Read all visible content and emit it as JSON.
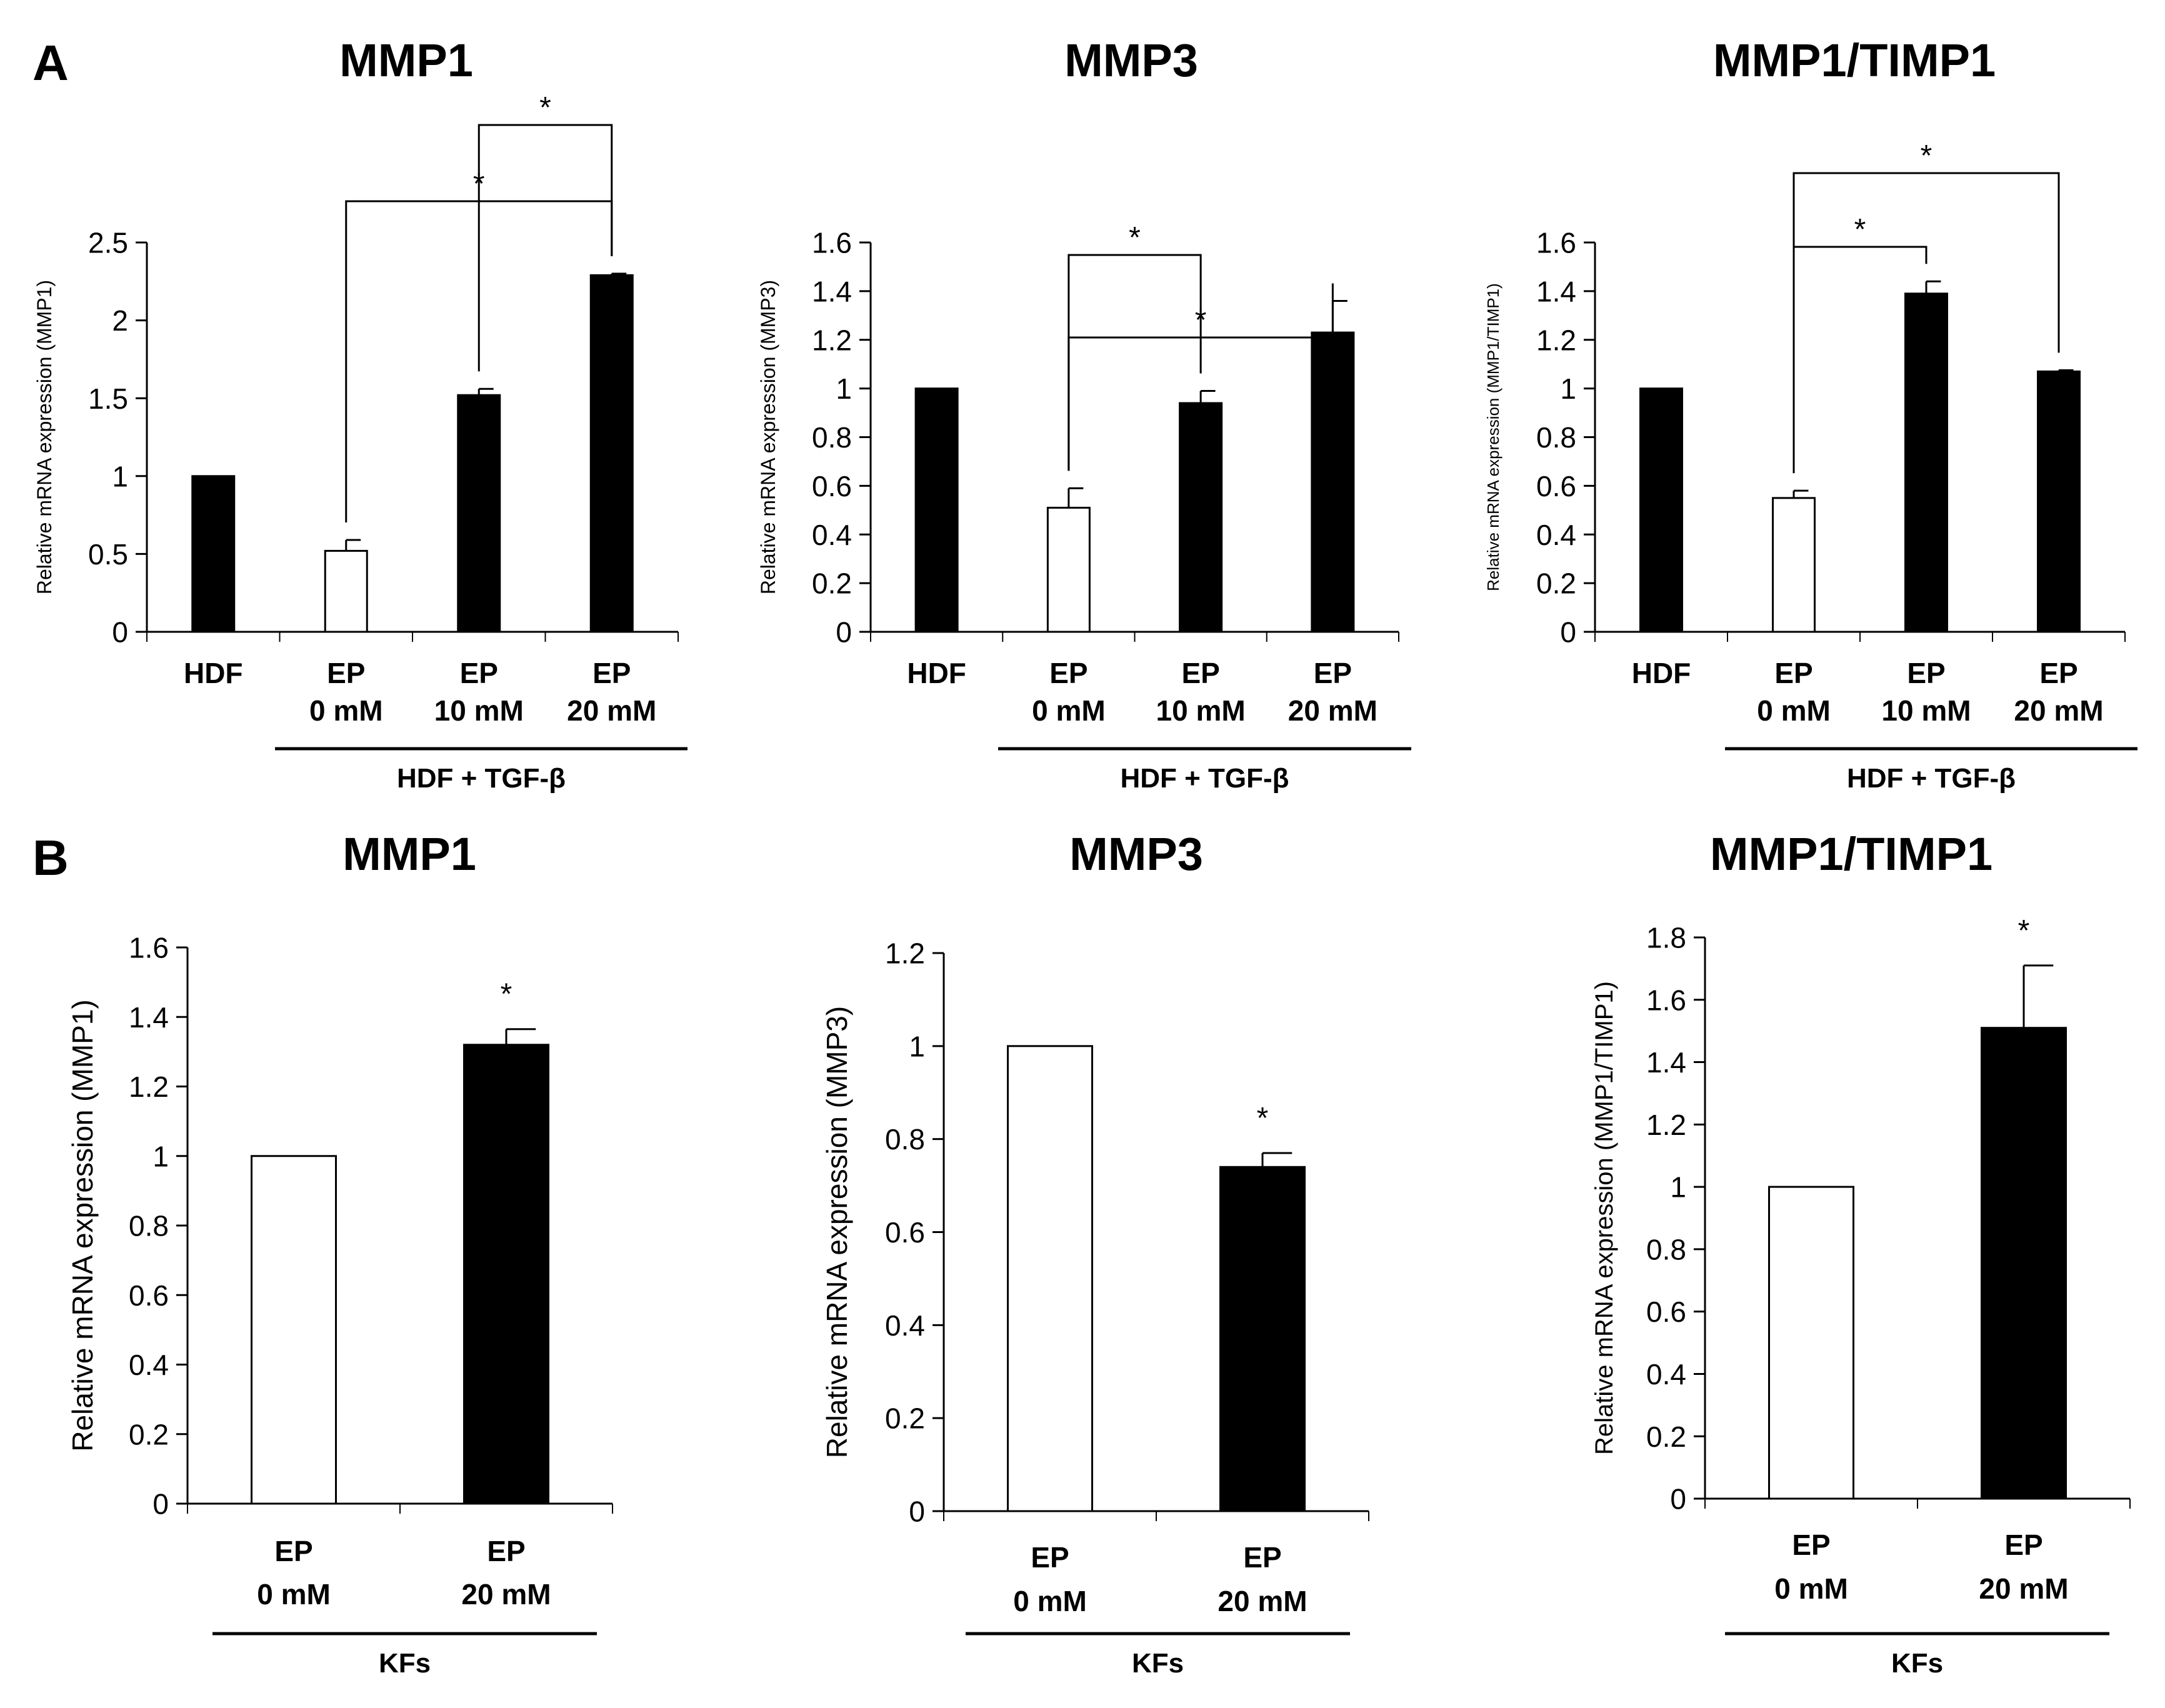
{
  "panels": [
    {
      "letter": "A"
    },
    {
      "letter": "B"
    }
  ],
  "chart_data": [
    {
      "type": "bar",
      "panel": "A",
      "title": "MMP1",
      "ylabel": "Relative mRNA expression (MMP1)",
      "ylim": [
        0,
        2.5
      ],
      "yticks": [
        0,
        0.5,
        1,
        1.5,
        2,
        2.5
      ],
      "ytick_labels": [
        "0",
        "0.5",
        "1",
        "1.5",
        "2",
        "2.5"
      ],
      "categories": [
        "HDF",
        "EP\n0 mM",
        "EP\n10 mM",
        "EP\n20 mM"
      ],
      "values": [
        1.0,
        0.52,
        1.52,
        2.29
      ],
      "errors": [
        0.0,
        0.07,
        0.04,
        0.01
      ],
      "bar_fill": [
        "black",
        "white",
        "black",
        "black"
      ],
      "group_label": "HDF + TGF-β",
      "group_span": [
        1,
        3
      ],
      "significance": [
        {
          "from": 2,
          "to": 3,
          "label": "*"
        },
        {
          "from": 1,
          "to": 3,
          "label": "*"
        }
      ]
    },
    {
      "type": "bar",
      "panel": "A",
      "title": "MMP3",
      "ylabel": "Relative mRNA expression (MMP3)",
      "ylim": [
        0,
        1.6
      ],
      "yticks": [
        0,
        0.2,
        0.4,
        0.6,
        0.8,
        1,
        1.2,
        1.4,
        1.6
      ],
      "ytick_labels": [
        "0",
        "0.2",
        "0.4",
        "0.6",
        "0.8",
        "1",
        "1.2",
        "1.4",
        "1.6"
      ],
      "categories": [
        "HDF",
        "EP\n0 mM",
        "EP\n10 mM",
        "EP\n20 mM"
      ],
      "values": [
        1.0,
        0.51,
        0.94,
        1.23
      ],
      "errors": [
        0.0,
        0.08,
        0.05,
        0.13
      ],
      "bar_fill": [
        "black",
        "white",
        "black",
        "black"
      ],
      "group_label": "HDF + TGF-β",
      "group_span": [
        1,
        3
      ],
      "significance": [
        {
          "from": 1,
          "to": 2,
          "label": "*"
        },
        {
          "from": 1,
          "to": 3,
          "label": "*"
        }
      ]
    },
    {
      "type": "bar",
      "panel": "A",
      "title": "MMP1/TIMP1",
      "ylabel": "Relative mRNA expression (MMP1/TIMP1)",
      "ylim": [
        0,
        1.6
      ],
      "yticks": [
        0,
        0.2,
        0.4,
        0.6,
        0.8,
        1,
        1.2,
        1.4,
        1.6
      ],
      "ytick_labels": [
        "0",
        "0.2",
        "0.4",
        "0.6",
        "0.8",
        "1",
        "1.2",
        "1.4",
        "1.6"
      ],
      "categories": [
        "HDF",
        "EP\n0 mM",
        "EP\n10 mM",
        "EP\n20 mM"
      ],
      "values": [
        1.0,
        0.55,
        1.39,
        1.07
      ],
      "errors": [
        0.0,
        0.03,
        0.05,
        0.005
      ],
      "bar_fill": [
        "black",
        "white",
        "black",
        "black"
      ],
      "group_label": "HDF + TGF-β",
      "group_span": [
        1,
        3
      ],
      "significance": [
        {
          "from": 1,
          "to": 2,
          "label": "*"
        },
        {
          "from": 1,
          "to": 3,
          "label": "*"
        }
      ]
    },
    {
      "type": "bar",
      "panel": "B",
      "title": "MMP1",
      "ylabel": "Relative mRNA expression (MMP1)",
      "ylim": [
        0,
        1.6
      ],
      "yticks": [
        0,
        0.2,
        0.4,
        0.6,
        0.8,
        1,
        1.2,
        1.4,
        1.6
      ],
      "ytick_labels": [
        "0",
        "0.2",
        "0.4",
        "0.6",
        "0.8",
        "1",
        "1.2",
        "1.4",
        "1.6"
      ],
      "categories": [
        "EP\n0 mM",
        "EP\n20 mM"
      ],
      "values": [
        1.0,
        1.32
      ],
      "errors": [
        0.0,
        0.045
      ],
      "bar_fill": [
        "white",
        "black"
      ],
      "group_label": "KFs",
      "group_span": [
        0,
        1
      ],
      "point_stars": [
        null,
        "*"
      ]
    },
    {
      "type": "bar",
      "panel": "B",
      "title": "MMP3",
      "ylabel": "Relative mRNA expression (MMP3)",
      "ylim": [
        0,
        1.2
      ],
      "yticks": [
        0,
        0.2,
        0.4,
        0.6,
        0.8,
        1,
        1.2
      ],
      "ytick_labels": [
        "0",
        "0.2",
        "0.4",
        "0.6",
        "0.8",
        "1",
        "1.2"
      ],
      "categories": [
        "EP\n0 mM",
        "EP\n20 mM"
      ],
      "values": [
        1.0,
        0.74
      ],
      "errors": [
        0.0,
        0.03
      ],
      "bar_fill": [
        "white",
        "black"
      ],
      "group_label": "KFs",
      "group_span": [
        0,
        1
      ],
      "point_stars": [
        null,
        "*"
      ]
    },
    {
      "type": "bar",
      "panel": "B",
      "title": "MMP1/TIMP1",
      "ylabel": "Relative mRNA expression (MMP1/TIMP1)",
      "ylim": [
        0,
        1.8
      ],
      "yticks": [
        0,
        0.2,
        0.4,
        0.6,
        0.8,
        1,
        1.2,
        1.4,
        1.6,
        1.8
      ],
      "ytick_labels": [
        "0",
        "0.2",
        "0.4",
        "0.6",
        "0.8",
        "1",
        "1.2",
        "1.4",
        "1.6",
        "1.8"
      ],
      "categories": [
        "EP\n0 mM",
        "EP\n20 mM"
      ],
      "values": [
        1.0,
        1.51
      ],
      "errors": [
        0.0,
        0.2
      ],
      "bar_fill": [
        "white",
        "black"
      ],
      "group_label": "KFs",
      "group_span": [
        0,
        1
      ],
      "point_stars": [
        null,
        "*"
      ]
    }
  ]
}
